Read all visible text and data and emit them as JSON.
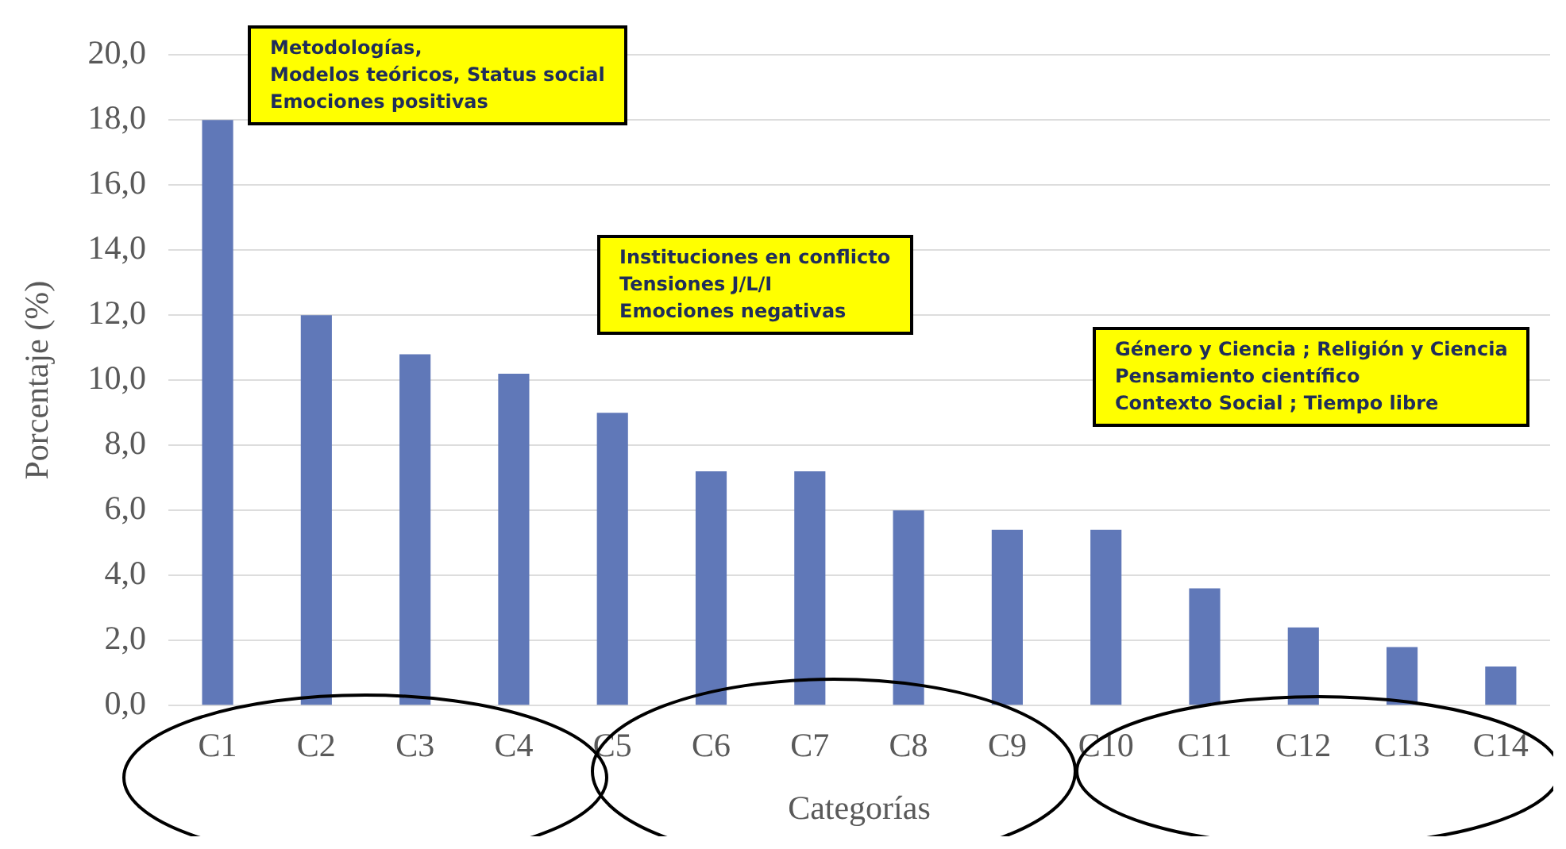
{
  "chart_data": {
    "type": "bar",
    "xlabel": "Categorías",
    "ylabel": "Porcentaje (%)",
    "categories": [
      "C1",
      "C2",
      "C3",
      "C4",
      "C5",
      "C6",
      "C7",
      "C8",
      "C9",
      "C10",
      "C11",
      "C12",
      "C13",
      "C14"
    ],
    "values": [
      18.0,
      12.0,
      10.8,
      10.2,
      9.0,
      7.2,
      7.2,
      6.0,
      5.4,
      5.4,
      3.6,
      2.4,
      1.8,
      1.2
    ],
    "color": "#6078b8",
    "ylim": [
      0,
      20
    ],
    "yticks": [
      {
        "value": 0,
        "label": "0,0"
      },
      {
        "value": 2,
        "label": "2,0"
      },
      {
        "value": 4,
        "label": "4,0"
      },
      {
        "value": 6,
        "label": "6,0"
      },
      {
        "value": 8,
        "label": "8,0"
      },
      {
        "value": 10,
        "label": "10,0"
      },
      {
        "value": 12,
        "label": "12,0"
      },
      {
        "value": 14,
        "label": "14,0"
      },
      {
        "value": 16,
        "label": "16,0"
      },
      {
        "value": 18,
        "label": "18,0"
      },
      {
        "value": 20,
        "label": "20,0"
      }
    ],
    "grid": "y",
    "legend": false,
    "annotations": [
      "Metodologías,\nModelos teóricos, Status social\nEmociones positivas",
      "Instituciones en conflicto\nTensiones J/L/I\nEmociones negativas",
      "Género y Ciencia ; Religión y Ciencia\nPensamiento científico\nContexto Social ; Tiempo libre"
    ]
  }
}
